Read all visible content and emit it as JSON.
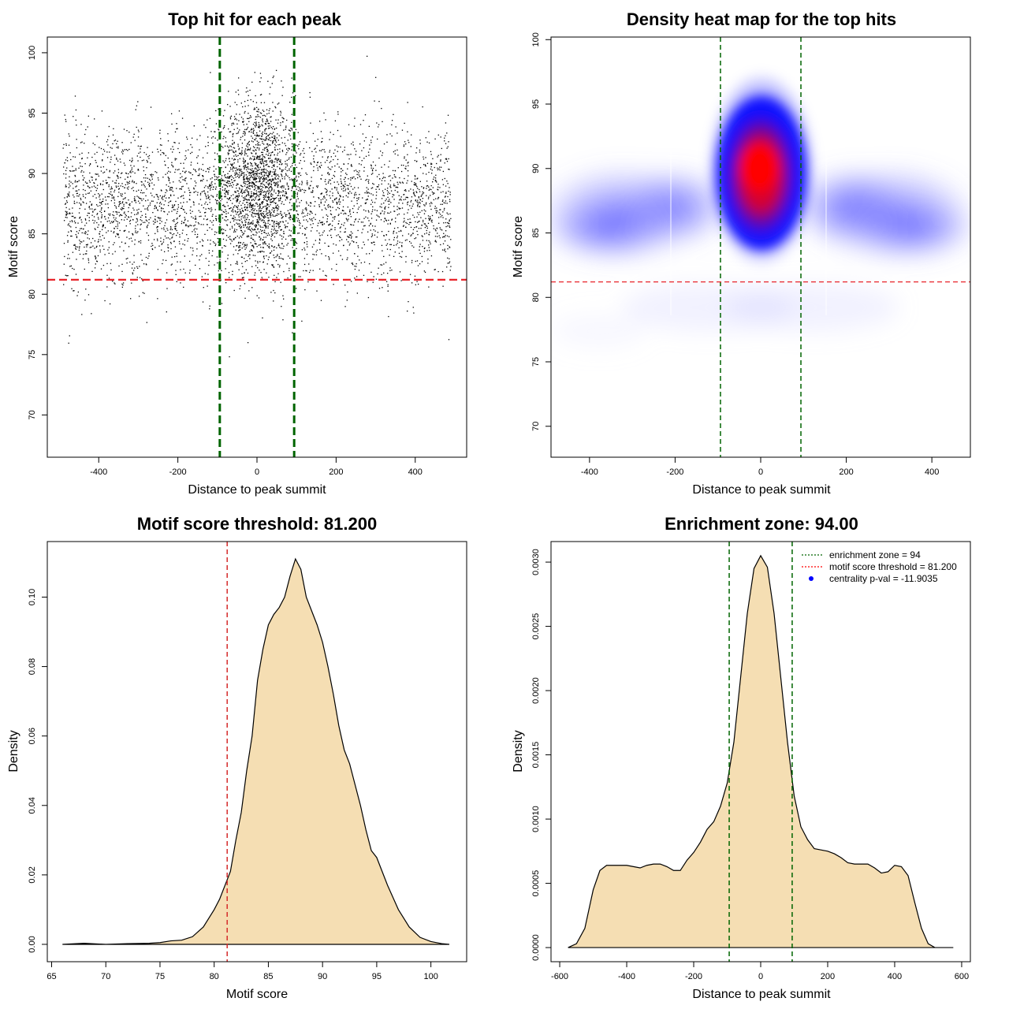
{
  "chart_data": [
    {
      "type": "scatter",
      "title": "Top hit for each peak",
      "xlabel": "Distance to peak summit",
      "ylabel": "Motif score",
      "xlim": [
        -530,
        530
      ],
      "ylim": [
        66.5,
        101.3
      ],
      "xticks": [
        -400,
        -200,
        0,
        200,
        400
      ],
      "yticks": [
        70,
        75,
        80,
        85,
        90,
        95,
        100
      ],
      "vlines": [
        -94,
        94
      ],
      "hline": 81.2,
      "points": {
        "n": 5000,
        "x_range": [
          -490,
          490
        ],
        "central_cluster": {
          "x_center": 0,
          "x_sd": 45,
          "y_center": 89.5,
          "y_sd": 3.5
        },
        "background": {
          "y_center": 87.5,
          "y_sd": 3.2
        }
      }
    },
    {
      "type": "heatmap",
      "title": "Density heat map for the top hits",
      "xlabel": "Distance to peak summit",
      "ylabel": "Motif score",
      "xlim": [
        -490,
        490
      ],
      "ylim": [
        67.6,
        100.2
      ],
      "xticks": [
        -400,
        -200,
        0,
        200,
        400
      ],
      "yticks": [
        70,
        75,
        80,
        85,
        90,
        95,
        100
      ],
      "vlines": [
        -94,
        94
      ],
      "hline": 81.2,
      "peak": {
        "x": 0,
        "y": 89.7
      },
      "color_scale": [
        "#ffffff",
        "#0000ff",
        "#ff0000"
      ]
    },
    {
      "type": "area",
      "title": "Motif score threshold: 81.200",
      "xlabel": "Motif score",
      "ylabel": "Density",
      "xlim": [
        64.6,
        103.3
      ],
      "ylim": [
        -0.005,
        0.116
      ],
      "xticks": [
        65,
        70,
        75,
        80,
        85,
        90,
        95,
        100
      ],
      "yticks": [
        0.0,
        0.02,
        0.04,
        0.06,
        0.08,
        0.1
      ],
      "ytick_labels": [
        "0.00",
        "0.02",
        "0.04",
        "0.06",
        "0.08",
        "0.10"
      ],
      "vline": 81.2,
      "fill": "#f5deb3",
      "x": [
        66,
        68,
        70,
        72,
        74,
        75,
        76,
        77,
        78,
        79,
        80,
        80.5,
        81,
        81.5,
        82,
        82.5,
        83,
        83.5,
        84,
        84.5,
        85,
        85.5,
        86,
        86.5,
        87,
        87.5,
        88,
        88.5,
        89,
        89.5,
        90,
        90.5,
        91,
        91.5,
        92,
        92.5,
        93,
        93.5,
        94,
        94.5,
        95,
        95.5,
        96,
        97,
        98,
        99,
        100,
        101,
        101.7
      ],
      "values": [
        0.0,
        0.0003,
        0.0,
        0.0002,
        0.0003,
        0.0005,
        0.001,
        0.0012,
        0.0022,
        0.005,
        0.01,
        0.013,
        0.017,
        0.021,
        0.03,
        0.038,
        0.05,
        0.06,
        0.076,
        0.085,
        0.092,
        0.095,
        0.097,
        0.1,
        0.106,
        0.111,
        0.108,
        0.1,
        0.096,
        0.092,
        0.087,
        0.08,
        0.072,
        0.063,
        0.056,
        0.052,
        0.046,
        0.04,
        0.033,
        0.027,
        0.025,
        0.021,
        0.017,
        0.01,
        0.005,
        0.002,
        0.0008,
        0.0002,
        0.0
      ]
    },
    {
      "type": "area",
      "title": "Enrichment zone: 94.00",
      "xlabel": "Distance to peak summit",
      "ylabel": "Density",
      "xlim": [
        -626,
        626
      ],
      "ylim": [
        -0.00011,
        0.00316
      ],
      "xticks": [
        -600,
        -400,
        -200,
        0,
        200,
        400,
        600
      ],
      "yticks": [
        0.0,
        0.0005,
        0.001,
        0.0015,
        0.002,
        0.0025,
        0.003
      ],
      "ytick_labels": [
        "0.0000",
        "0.0005",
        "0.0010",
        "0.0015",
        "0.0020",
        "0.0025",
        "0.0030"
      ],
      "vlines": [
        -94,
        94
      ],
      "fill": "#f5deb3",
      "x": [
        -575,
        -550,
        -525,
        -500,
        -480,
        -460,
        -440,
        -420,
        -400,
        -380,
        -360,
        -340,
        -320,
        -300,
        -280,
        -260,
        -240,
        -220,
        -200,
        -180,
        -160,
        -140,
        -120,
        -100,
        -80,
        -60,
        -40,
        -20,
        0,
        20,
        40,
        60,
        80,
        100,
        120,
        140,
        160,
        180,
        200,
        220,
        240,
        260,
        280,
        300,
        320,
        340,
        360,
        380,
        400,
        420,
        440,
        460,
        480,
        500,
        520,
        550,
        575
      ],
      "values": [
        0.0,
        3e-05,
        0.00015,
        0.00045,
        0.0006,
        0.00064,
        0.00064,
        0.00064,
        0.00064,
        0.00063,
        0.00062,
        0.00064,
        0.00065,
        0.00065,
        0.00063,
        0.0006,
        0.0006,
        0.00068,
        0.00074,
        0.00082,
        0.00092,
        0.00098,
        0.0011,
        0.00128,
        0.0016,
        0.0021,
        0.0026,
        0.00295,
        0.00305,
        0.00296,
        0.0026,
        0.0021,
        0.0016,
        0.00118,
        0.00094,
        0.00084,
        0.00077,
        0.00076,
        0.00075,
        0.00073,
        0.0007,
        0.00066,
        0.00065,
        0.00065,
        0.00065,
        0.00062,
        0.00058,
        0.00059,
        0.00064,
        0.00063,
        0.00056,
        0.00035,
        0.00015,
        3e-05,
        0.0,
        0.0,
        0.0
      ],
      "legend": {
        "position": "top-right",
        "entries": [
          {
            "label": "enrichment zone = 94",
            "color": "#006400",
            "style": "dotted-line"
          },
          {
            "label": "motif score threshold = 81.200",
            "color": "#ff0000",
            "style": "dotted-line"
          },
          {
            "label": "centrality p-val = -11.9035",
            "color": "#0000ff",
            "style": "point"
          }
        ]
      }
    }
  ]
}
